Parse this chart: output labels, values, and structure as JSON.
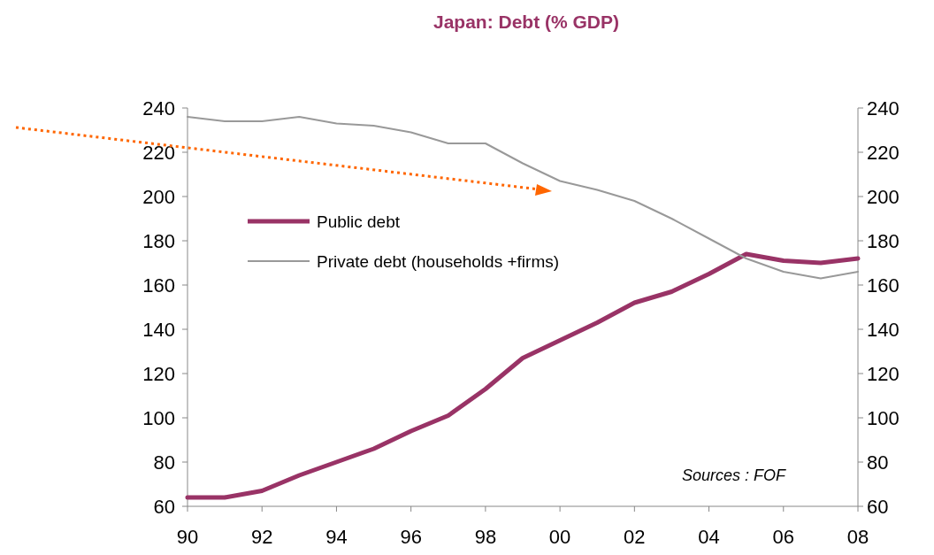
{
  "chart_data": {
    "type": "line",
    "title": "Japan: Debt (% GDP)",
    "x": [
      1990,
      1991,
      1992,
      1993,
      1994,
      1995,
      1996,
      1997,
      1998,
      1999,
      2000,
      2001,
      2002,
      2003,
      2004,
      2005,
      2006,
      2007,
      2008
    ],
    "series": [
      {
        "name": "Public debt",
        "color": "#993366",
        "values": [
          64,
          64,
          67,
          74,
          80,
          86,
          94,
          101,
          113,
          127,
          135,
          143,
          152,
          157,
          165,
          174,
          171,
          170,
          172
        ]
      },
      {
        "name": "Private debt (households +firms)",
        "color": "#999999",
        "values": [
          236,
          234,
          234,
          236,
          233,
          232,
          229,
          224,
          224,
          215,
          207,
          203,
          198,
          190,
          181,
          172,
          166,
          163,
          166
        ]
      }
    ],
    "xlim": [
      1990,
      2008
    ],
    "xticks": [
      {
        "value": 1990,
        "label": "90"
      },
      {
        "value": 1992,
        "label": "92"
      },
      {
        "value": 1994,
        "label": "94"
      },
      {
        "value": 1996,
        "label": "96"
      },
      {
        "value": 1998,
        "label": "98"
      },
      {
        "value": 2000,
        "label": "00"
      },
      {
        "value": 2002,
        "label": "02"
      },
      {
        "value": 2004,
        "label": "04"
      },
      {
        "value": 2006,
        "label": "06"
      },
      {
        "value": 2008,
        "label": "08"
      }
    ],
    "ylim": [
      60,
      240
    ],
    "yticks": [
      60,
      80,
      100,
      120,
      140,
      160,
      180,
      200,
      220,
      240
    ],
    "y2lim": [
      60,
      240
    ],
    "y2ticks": [
      60,
      80,
      100,
      120,
      140,
      160,
      180,
      200,
      220,
      240
    ],
    "annotations": [
      "Sources : FOF"
    ],
    "legend": "top left",
    "grid": false,
    "marker": "none",
    "line_style": "solid"
  }
}
